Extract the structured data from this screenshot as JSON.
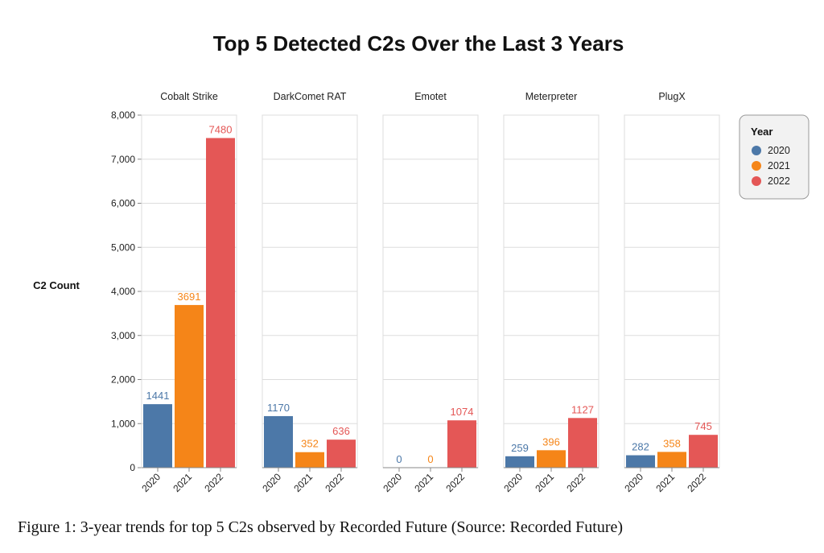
{
  "caption": "Figure 1: 3-year trends for top 5 C2s observed by Recorded Future (Source: Recorded Future)",
  "chart_data": {
    "type": "bar",
    "title": "Top 5 Detected C2s Over the Last 3 Years",
    "ylabel": "C2 Count",
    "xlabel": "",
    "ylim": [
      0,
      8000
    ],
    "yticks": [
      0,
      1000,
      2000,
      3000,
      4000,
      5000,
      6000,
      7000,
      8000
    ],
    "ytick_labels": [
      "0",
      "1,000",
      "2,000",
      "3,000",
      "4,000",
      "5,000",
      "6,000",
      "7,000",
      "8,000"
    ],
    "categories": [
      "2020",
      "2021",
      "2022"
    ],
    "grid": true,
    "legend": {
      "title": "Year",
      "placement": "top-right",
      "items": [
        {
          "label": "2020",
          "color": "#4c78a8"
        },
        {
          "label": "2021",
          "color": "#f58518"
        },
        {
          "label": "2022",
          "color": "#e45756"
        }
      ]
    },
    "facets": [
      {
        "name": "Cobalt Strike",
        "values": [
          1441,
          3691,
          7480
        ]
      },
      {
        "name": "DarkComet RAT",
        "values": [
          1170,
          352,
          636
        ]
      },
      {
        "name": "Emotet",
        "values": [
          0,
          0,
          1074
        ]
      },
      {
        "name": "Meterpreter",
        "values": [
          259,
          396,
          1127
        ]
      },
      {
        "name": "PlugX",
        "values": [
          282,
          358,
          745
        ]
      }
    ]
  }
}
